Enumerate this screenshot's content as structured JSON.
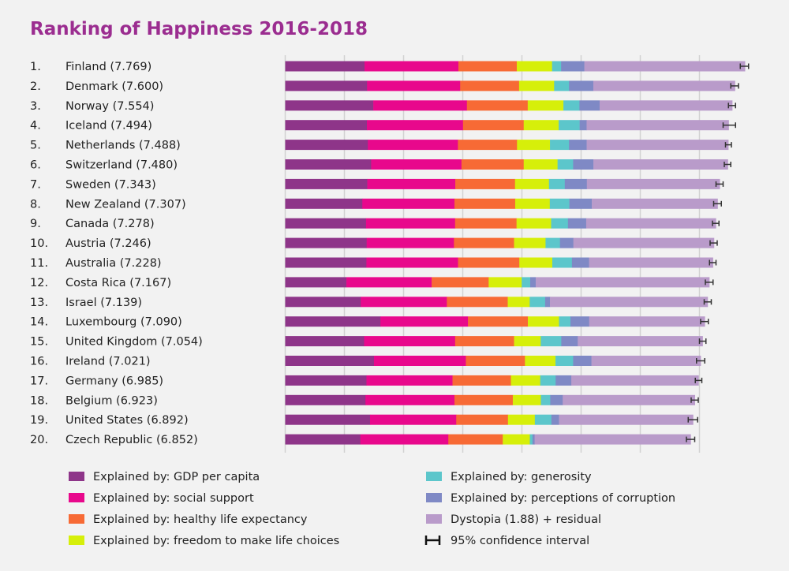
{
  "chart_data": {
    "type": "bar",
    "orientation": "horizontal",
    "stacked": true,
    "title": "Ranking of Happiness 2016-2018",
    "xlim": [
      0,
      8
    ],
    "grid": true,
    "legend_placement": "bottom",
    "series": [
      {
        "name": "Explained by: GDP per capita",
        "color": "#8e3589"
      },
      {
        "name": "Explained by: social support",
        "color": "#e8088c"
      },
      {
        "name": "Explained by: healthy life expectancy",
        "color": "#f76a35"
      },
      {
        "name": "Explained by: freedom to make life choices",
        "color": "#d6ef0a"
      },
      {
        "name": "Explained by: generosity",
        "color": "#5cc6cb"
      },
      {
        "name": "Explained by: perceptions of corruption",
        "color": "#7f89c5"
      },
      {
        "name": "Dystopia (1.88) + residual",
        "color": "#b99bca"
      }
    ],
    "ci_legend": "95% confidence interval",
    "rows": [
      {
        "rank": "1.",
        "label": "Finland (7.769)",
        "score": 7.769,
        "values": [
          1.34,
          1.587,
          0.986,
          0.596,
          0.153,
          0.393,
          2.714
        ],
        "ci": [
          7.69,
          7.83
        ]
      },
      {
        "rank": "2.",
        "label": "Denmark (7.600)",
        "score": 7.6,
        "values": [
          1.383,
          1.573,
          0.996,
          0.592,
          0.252,
          0.41,
          2.394
        ],
        "ci": [
          7.53,
          7.66
        ]
      },
      {
        "rank": "3.",
        "label": "Norway (7.554)",
        "score": 7.554,
        "values": [
          1.488,
          1.582,
          1.028,
          0.603,
          0.271,
          0.341,
          2.241
        ],
        "ci": [
          7.49,
          7.61
        ]
      },
      {
        "rank": "4.",
        "label": "Iceland (7.494)",
        "score": 7.494,
        "values": [
          1.38,
          1.624,
          1.026,
          0.591,
          0.354,
          0.118,
          2.401
        ],
        "ci": [
          7.4,
          7.61
        ]
      },
      {
        "rank": "5.",
        "label": "Netherlands (7.488)",
        "score": 7.488,
        "values": [
          1.396,
          1.522,
          0.999,
          0.557,
          0.322,
          0.298,
          2.394
        ],
        "ci": [
          7.44,
          7.54
        ]
      },
      {
        "rank": "6.",
        "label": "Switzerland (7.480)",
        "score": 7.48,
        "values": [
          1.452,
          1.526,
          1.052,
          0.572,
          0.263,
          0.343,
          2.272
        ],
        "ci": [
          7.42,
          7.53
        ]
      },
      {
        "rank": "7.",
        "label": "Sweden (7.343)",
        "score": 7.343,
        "values": [
          1.387,
          1.487,
          1.009,
          0.574,
          0.267,
          0.373,
          2.246
        ],
        "ci": [
          7.28,
          7.4
        ]
      },
      {
        "rank": "8.",
        "label": "New Zealand (7.307)",
        "score": 7.307,
        "values": [
          1.303,
          1.557,
          1.026,
          0.585,
          0.33,
          0.38,
          2.126
        ],
        "ci": [
          7.24,
          7.37
        ]
      },
      {
        "rank": "9.",
        "label": "Canada (7.278)",
        "score": 7.278,
        "values": [
          1.365,
          1.505,
          1.039,
          0.584,
          0.285,
          0.308,
          2.192
        ],
        "ci": [
          7.22,
          7.33
        ]
      },
      {
        "rank": "10.",
        "label": "Austria (7.246)",
        "score": 7.246,
        "values": [
          1.376,
          1.475,
          1.016,
          0.532,
          0.244,
          0.226,
          2.377
        ],
        "ci": [
          7.18,
          7.3
        ]
      },
      {
        "rank": "11.",
        "label": "Australia (7.228)",
        "score": 7.228,
        "values": [
          1.372,
          1.548,
          1.036,
          0.557,
          0.332,
          0.29,
          2.093
        ],
        "ci": [
          7.17,
          7.28
        ]
      },
      {
        "rank": "12.",
        "label": "Costa Rica (7.167)",
        "score": 7.167,
        "values": [
          1.034,
          1.441,
          0.963,
          0.558,
          0.144,
          0.093,
          2.934
        ],
        "ci": [
          7.1,
          7.23
        ]
      },
      {
        "rank": "13.",
        "label": "Israel (7.139)",
        "score": 7.139,
        "values": [
          1.276,
          1.455,
          1.029,
          0.371,
          0.261,
          0.082,
          2.665
        ],
        "ci": [
          7.08,
          7.2
        ]
      },
      {
        "rank": "14.",
        "label": "Luxembourg (7.090)",
        "score": 7.09,
        "values": [
          1.609,
          1.479,
          1.012,
          0.526,
          0.194,
          0.316,
          1.954
        ],
        "ci": [
          7.02,
          7.15
        ]
      },
      {
        "rank": "15.",
        "label": "United Kingdom (7.054)",
        "score": 7.054,
        "values": [
          1.333,
          1.538,
          0.996,
          0.45,
          0.348,
          0.278,
          2.111
        ],
        "ci": [
          7.0,
          7.11
        ]
      },
      {
        "rank": "16.",
        "label": "Ireland (7.021)",
        "score": 7.021,
        "values": [
          1.499,
          1.553,
          0.999,
          0.516,
          0.298,
          0.31,
          1.846
        ],
        "ci": [
          6.95,
          7.09
        ]
      },
      {
        "rank": "17.",
        "label": "Germany (6.985)",
        "score": 6.985,
        "values": [
          1.373,
          1.454,
          0.987,
          0.495,
          0.261,
          0.265,
          2.15
        ],
        "ci": [
          6.93,
          7.04
        ]
      },
      {
        "rank": "18.",
        "label": "Belgium (6.923)",
        "score": 6.923,
        "values": [
          1.356,
          1.504,
          0.986,
          0.473,
          0.16,
          0.21,
          2.234
        ],
        "ci": [
          6.86,
          6.98
        ]
      },
      {
        "rank": "19.",
        "label": "United States (6.892)",
        "score": 6.892,
        "values": [
          1.433,
          1.457,
          0.874,
          0.454,
          0.28,
          0.128,
          2.266
        ],
        "ci": [
          6.81,
          6.97
        ]
      },
      {
        "rank": "20.",
        "label": "Czech Republic (6.852)",
        "score": 6.852,
        "values": [
          1.269,
          1.487,
          0.92,
          0.457,
          0.046,
          0.036,
          2.637
        ],
        "ci": [
          6.78,
          6.92
        ]
      }
    ]
  }
}
